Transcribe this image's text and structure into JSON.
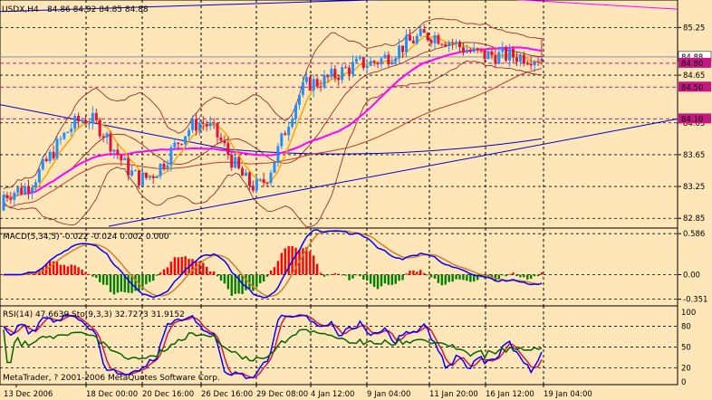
{
  "chart_header": {
    "symbol": "USDX,H4",
    "ohlc": "84.86 84.92 84.85 84.88"
  },
  "price_axis": {
    "ticks": [
      {
        "label": "85.25",
        "value": 85.25
      },
      {
        "label": "84.65",
        "value": 84.65
      },
      {
        "label": "84.05",
        "value": 84.05
      },
      {
        "label": "83.65",
        "value": 83.65
      },
      {
        "label": "83.25",
        "value": 83.25
      },
      {
        "label": "82.85",
        "value": 82.85
      }
    ],
    "current_price_label": "84.88",
    "level_tags": [
      {
        "label": "84.80",
        "value": 84.8
      },
      {
        "label": "84.50",
        "value": 84.5
      },
      {
        "label": "84.10",
        "value": 84.1
      }
    ]
  },
  "macd_panel": {
    "title": "MACD(5,34,5) -0.022 -0.024 0.002 0.000",
    "ticks": [
      {
        "label": "0.586",
        "value": 0.586
      },
      {
        "label": "0.00",
        "value": 0.0
      },
      {
        "label": "-0.351",
        "value": -0.351
      }
    ]
  },
  "rsi_panel": {
    "title": "RSI(14) 47.6639 Sto(9,3,3) 32.7273 31.9152",
    "ticks": [
      {
        "label": "100",
        "value": 100
      },
      {
        "label": "80",
        "value": 80
      },
      {
        "label": "50",
        "value": 50
      },
      {
        "label": "20",
        "value": 20
      },
      {
        "label": "0",
        "value": 0
      }
    ]
  },
  "watermark": "MetaTrader, ? 2001-2006 MetaQuotes Software Corp.",
  "time_axis": [
    "13 Dec 2006",
    "18 Dec 00:00",
    "20 Dec 16:00",
    "26 Dec 16:00",
    "29 Dec 08:00",
    "4 Jan 12:00",
    "9 Jan 04:00",
    "11 Jan 20:00",
    "16 Jan 12:00",
    "19 Jan 04:00"
  ],
  "colors": {
    "background": "#FFE6B8",
    "bull_candle": "#1E90FF",
    "bear_candle": "#DC143C",
    "ma_fast": "#FFA500",
    "ma_mid": "#FF00FF",
    "ma_slow": "#C0392B",
    "trendline": "#0000CD",
    "bollinger": "#8B1A1A",
    "hist_pos": "#FF0000",
    "hist_neg": "#008000",
    "macd_line": "#0000FF",
    "signal_line": "#CD7F32",
    "rsi_line": "#006400",
    "level_tag_bg": "#C71585"
  },
  "chart_data": {
    "type": "line",
    "title": "USDX,H4",
    "x": [
      "13 Dec 2006",
      "18 Dec 00:00",
      "20 Dec 16:00",
      "26 Dec 16:00",
      "29 Dec 08:00",
      "4 Jan 12:00",
      "9 Jan 04:00",
      "11 Jan 20:00",
      "16 Jan 12:00",
      "19 Jan 04:00"
    ],
    "series": [
      {
        "values": [
          83.2,
          84.1,
          83.35,
          84.05,
          83.25,
          84.55,
          84.8,
          85.15,
          84.9,
          84.88
        ]
      }
    ],
    "ylim": [
      82.75,
      85.5
    ],
    "grid": true
  }
}
